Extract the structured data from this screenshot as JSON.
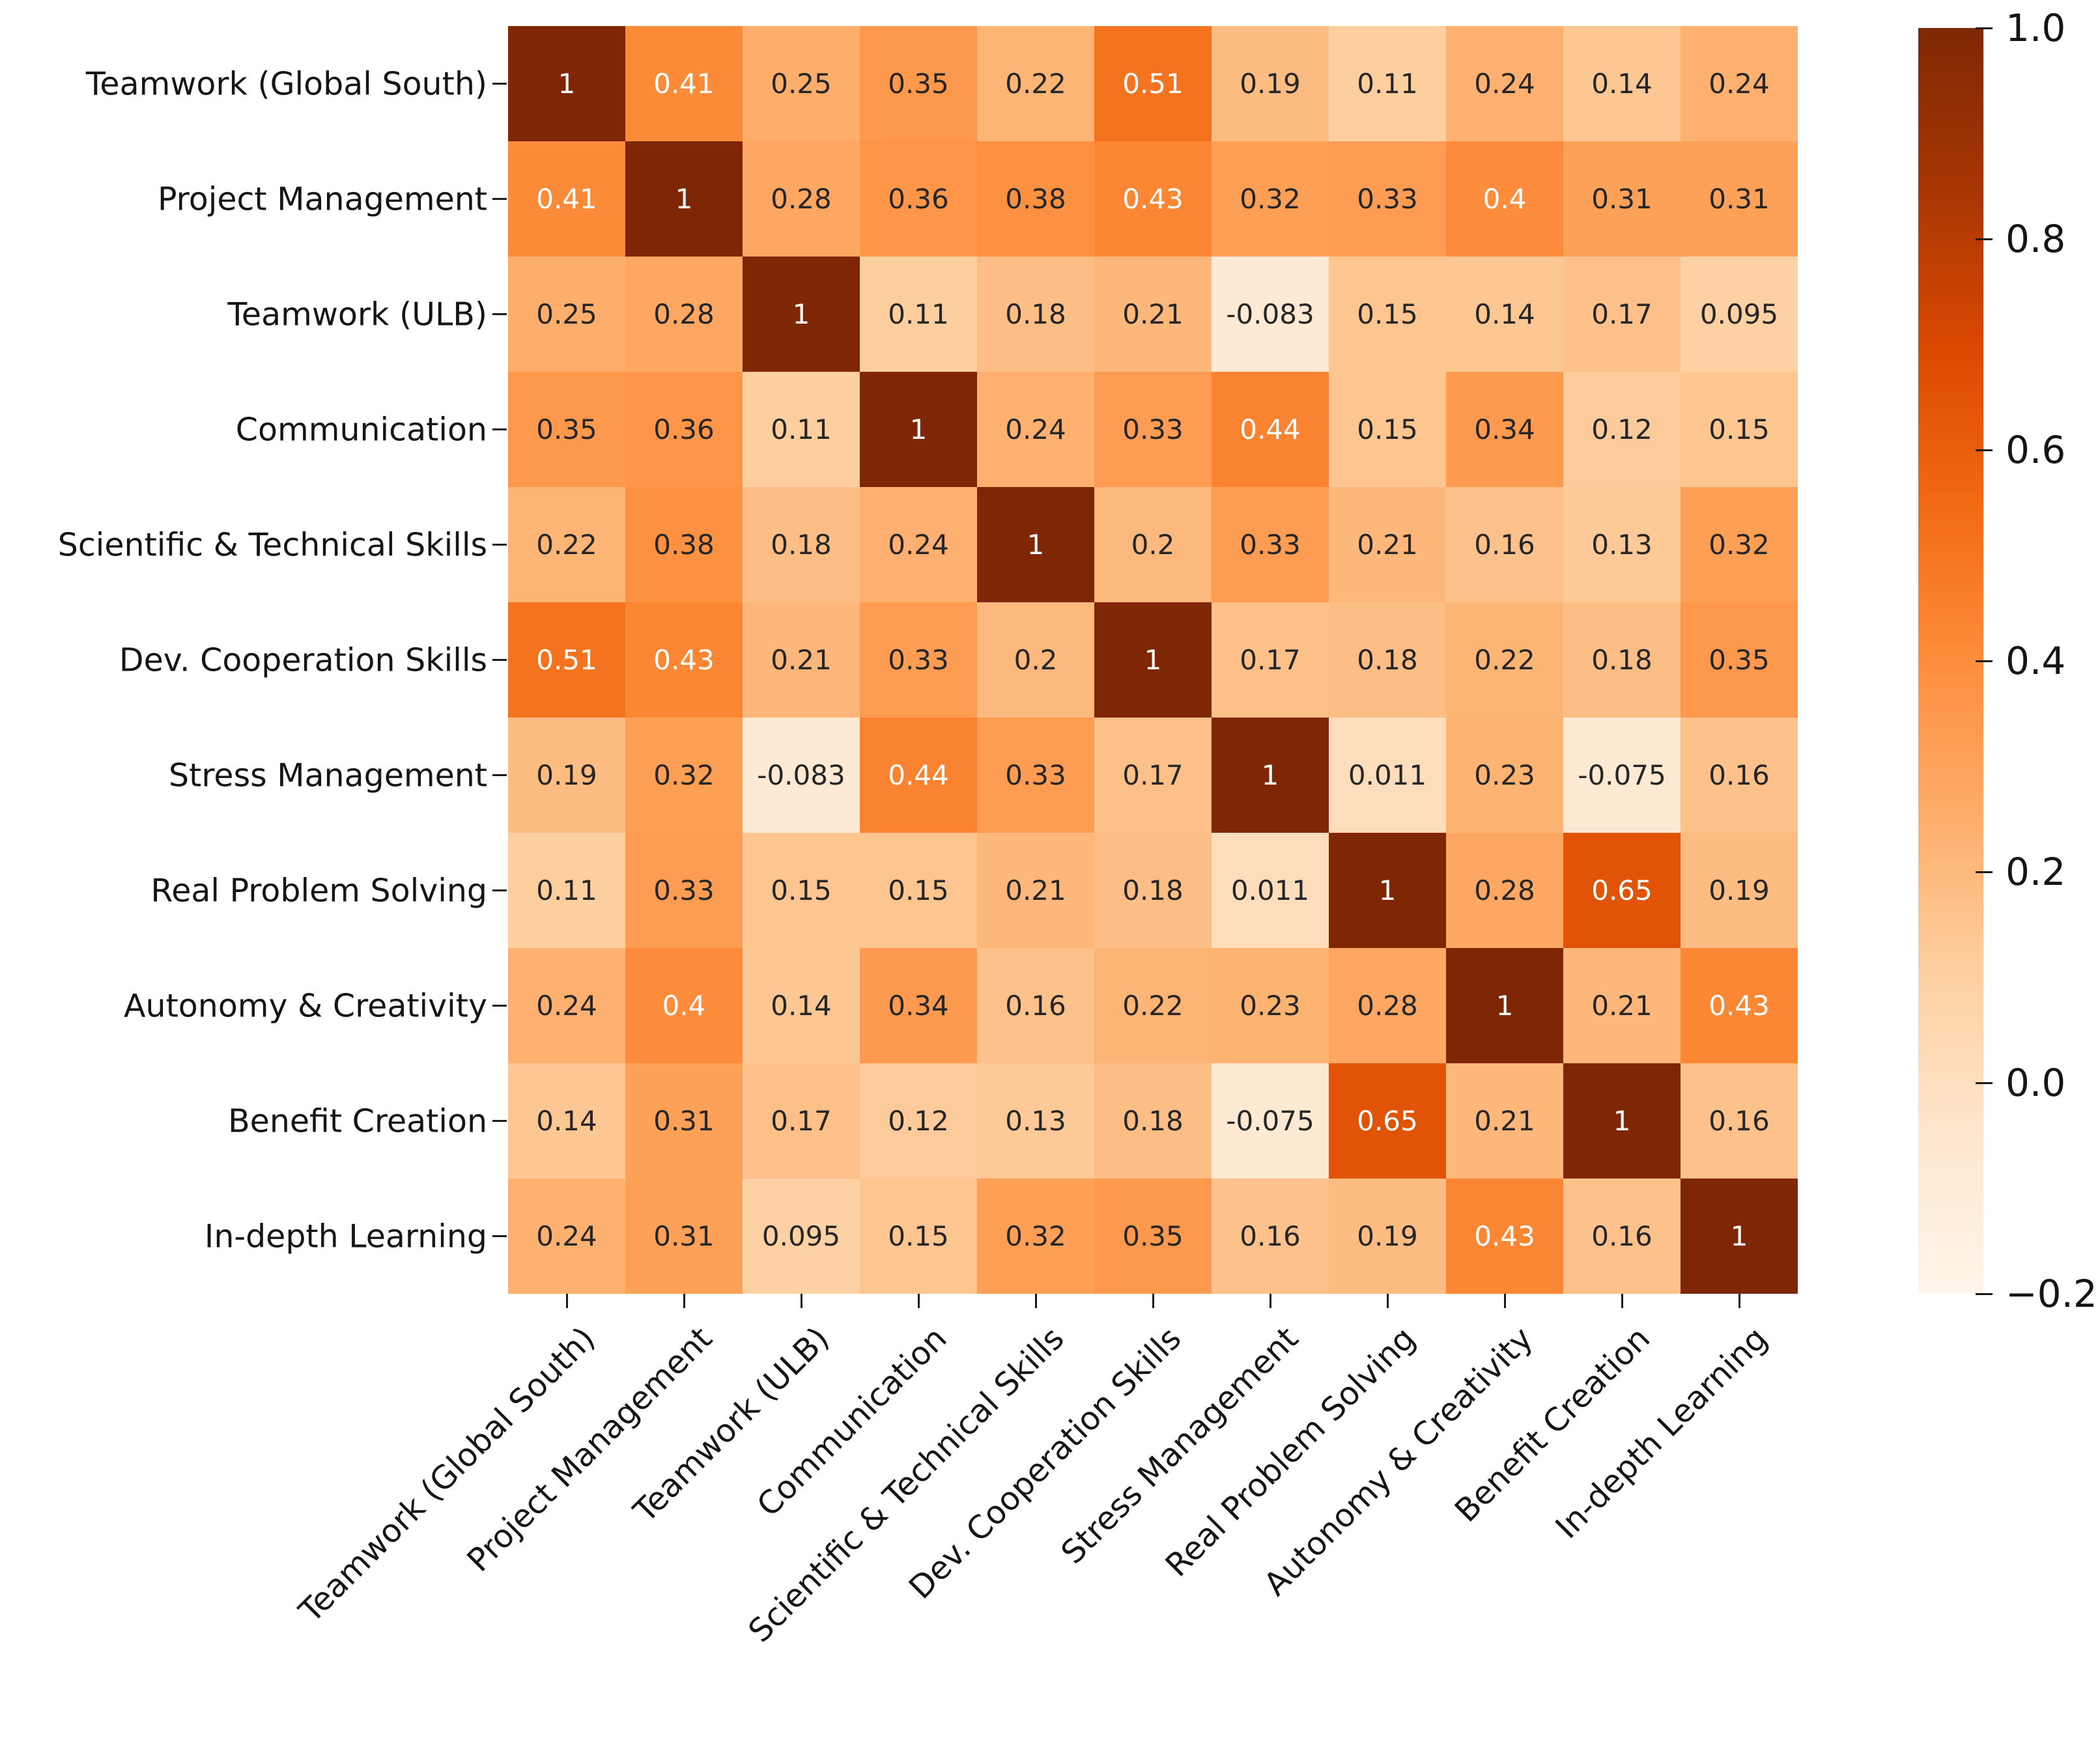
{
  "figure": {
    "background": "#ffffff",
    "axis_text_color": "#151515",
    "annotation_dark_color": "#262626",
    "annotation_light_color": "#ffffff"
  },
  "chart_data": {
    "type": "heatmap",
    "title": "",
    "xlabel": "",
    "ylabel": "",
    "categories": [
      "Teamwork (Global South)",
      "Project Management",
      "Teamwork (ULB)",
      "Communication",
      "Scientific & Technical Skills",
      "Dev. Cooperation Skills",
      "Stress Management",
      "Real Problem Solving",
      "Autonomy & Creativity",
      "Benefit Creation",
      "In-depth Learning"
    ],
    "matrix": [
      [
        1,
        0.41,
        0.25,
        0.35,
        0.22,
        0.51,
        0.19,
        0.11,
        0.24,
        0.14,
        0.24
      ],
      [
        0.41,
        1,
        0.28,
        0.36,
        0.38,
        0.43,
        0.32,
        0.33,
        0.4,
        0.31,
        0.31
      ],
      [
        0.25,
        0.28,
        1,
        0.11,
        0.18,
        0.21,
        -0.083,
        0.15,
        0.14,
        0.17,
        0.095
      ],
      [
        0.35,
        0.36,
        0.11,
        1,
        0.24,
        0.33,
        0.44,
        0.15,
        0.34,
        0.12,
        0.15
      ],
      [
        0.22,
        0.38,
        0.18,
        0.24,
        1,
        0.2,
        0.33,
        0.21,
        0.16,
        0.13,
        0.32
      ],
      [
        0.51,
        0.43,
        0.21,
        0.33,
        0.2,
        1,
        0.17,
        0.18,
        0.22,
        0.18,
        0.35
      ],
      [
        0.19,
        0.32,
        -0.083,
        0.44,
        0.33,
        0.17,
        1,
        0.011,
        0.23,
        -0.075,
        0.16
      ],
      [
        0.11,
        0.33,
        0.15,
        0.15,
        0.21,
        0.18,
        0.011,
        1,
        0.28,
        0.65,
        0.19
      ],
      [
        0.24,
        0.4,
        0.14,
        0.34,
        0.16,
        0.22,
        0.23,
        0.28,
        1,
        0.21,
        0.43
      ],
      [
        0.14,
        0.31,
        0.17,
        0.12,
        0.13,
        0.18,
        -0.075,
        0.65,
        0.21,
        1,
        0.16
      ],
      [
        0.24,
        0.31,
        0.095,
        0.15,
        0.32,
        0.35,
        0.16,
        0.19,
        0.43,
        0.16,
        1
      ]
    ],
    "colormap": "Oranges",
    "colormap_stops": [
      "#fff5eb",
      "#fee6ce",
      "#fdd0a2",
      "#fdae6b",
      "#fd8d3c",
      "#f16913",
      "#d94801",
      "#a63603",
      "#7f2704"
    ],
    "vmin": -0.2,
    "vmax": 1.0,
    "grid": false,
    "legend_position": "right-colorbar",
    "colorbar_ticks": [
      1.0,
      0.8,
      0.6,
      0.4,
      0.2,
      0.0,
      -0.2
    ],
    "colorbar_tick_labels": [
      "1.0",
      "0.8",
      "0.6",
      "0.4",
      "0.2",
      "0.0",
      "−0.2"
    ]
  }
}
